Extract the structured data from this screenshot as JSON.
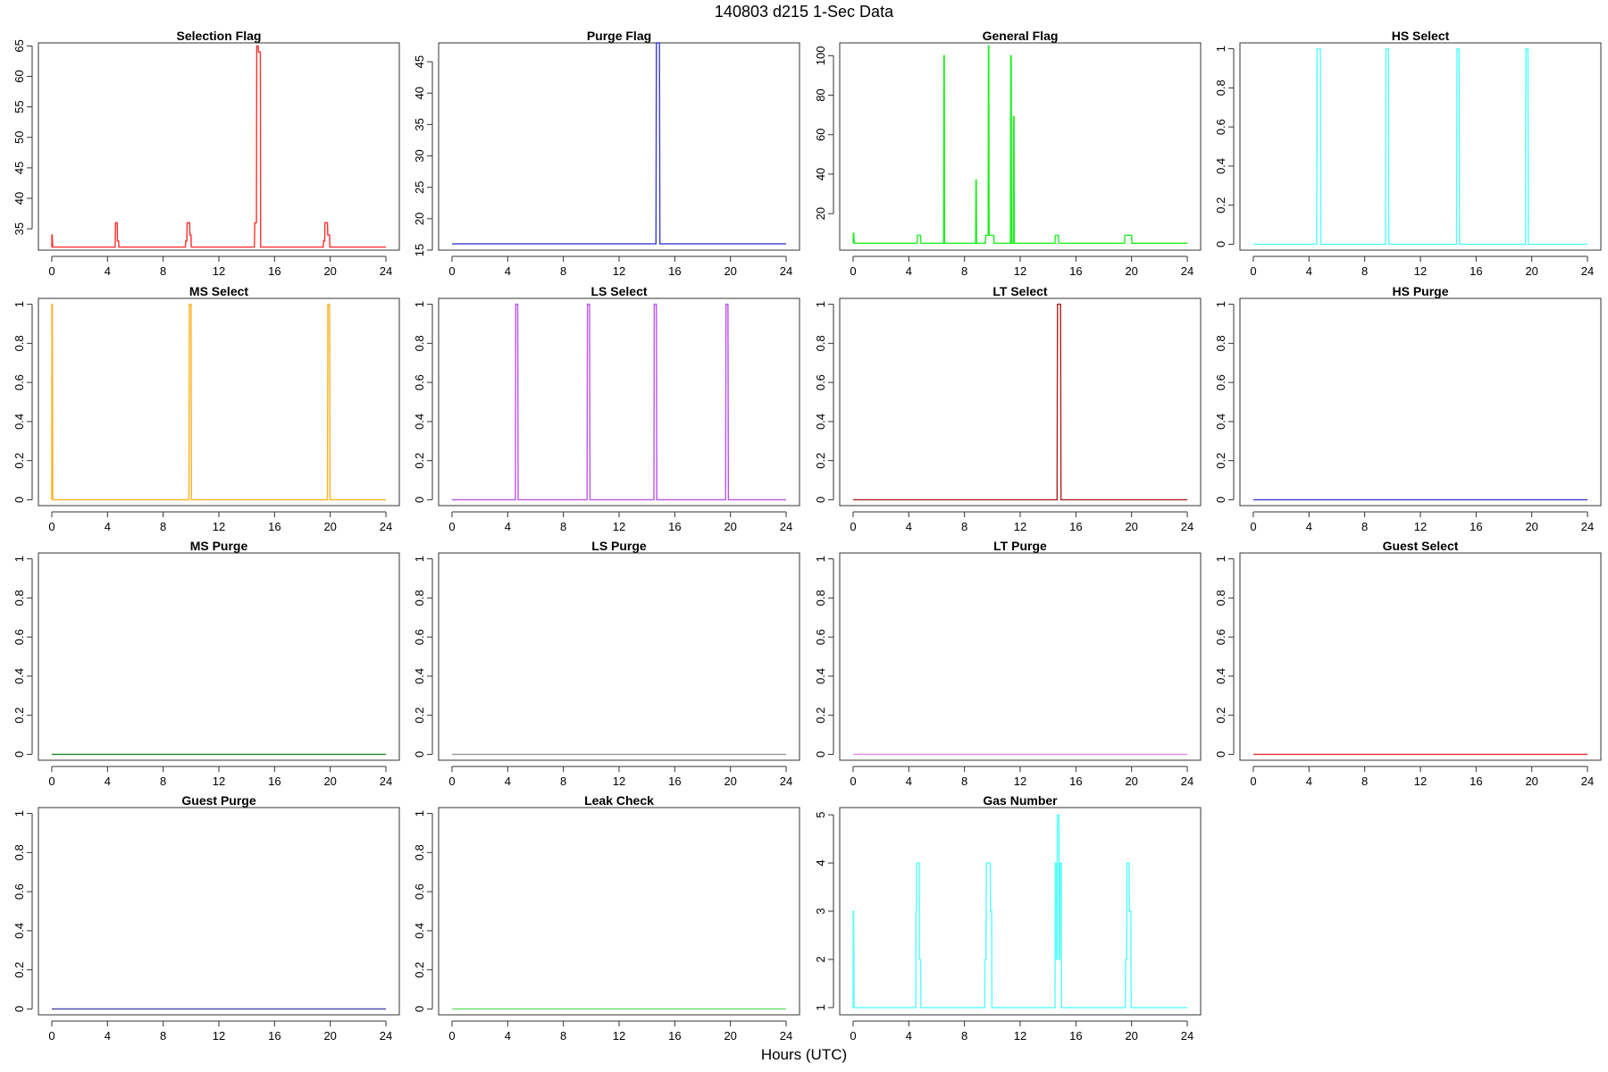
{
  "figure": {
    "title": "140803   d215   1-Sec Data",
    "xlabel": "Hours (UTC)"
  },
  "chart_data": [
    {
      "type": "line",
      "title": "Selection Flag",
      "color": "#ff3030",
      "xlim": [
        0,
        24
      ],
      "xticks": [
        0,
        4,
        8,
        12,
        16,
        20,
        24
      ],
      "ylim": [
        31.5,
        65.5
      ],
      "yticks": [
        35,
        40,
        45,
        50,
        55,
        60,
        65
      ],
      "x": [
        0,
        0.01,
        0.03,
        0.07,
        0.09,
        4.55,
        4.58,
        4.7,
        4.72,
        4.8,
        4.82,
        9.6,
        9.62,
        9.7,
        9.72,
        9.9,
        9.92,
        10.0,
        10.02,
        14.55,
        14.58,
        14.7,
        14.72,
        14.82,
        14.85,
        14.98,
        15.0,
        19.5,
        19.52,
        19.6,
        19.62,
        19.8,
        19.82,
        19.95,
        19.97,
        24
      ],
      "y": [
        32,
        34,
        34,
        32,
        32,
        32,
        36,
        36,
        33,
        33,
        32,
        32,
        33,
        33,
        36,
        36,
        34,
        34,
        32,
        32,
        36,
        36,
        65,
        65,
        64,
        64,
        32,
        32,
        33,
        33,
        36,
        36,
        34,
        34,
        32,
        32
      ]
    },
    {
      "type": "line",
      "title": "Purge Flag",
      "color": "#3b3bd6",
      "xlim": [
        0,
        24
      ],
      "xticks": [
        0,
        4,
        8,
        12,
        16,
        20,
        24
      ],
      "ylim": [
        15,
        48
      ],
      "yticks": [
        15,
        20,
        25,
        30,
        35,
        40,
        45
      ],
      "x": [
        0,
        14.65,
        14.68,
        14.9,
        14.93,
        24
      ],
      "y": [
        16,
        16,
        48,
        48,
        16,
        16
      ]
    },
    {
      "type": "line",
      "title": "General Flag",
      "color": "#22ee22",
      "xlim": [
        0,
        24
      ],
      "xticks": [
        0,
        4,
        8,
        12,
        16,
        20,
        24
      ],
      "ylim": [
        1.5,
        106.5
      ],
      "yticks": [
        20,
        40,
        60,
        80,
        100
      ],
      "x": [
        0,
        0.02,
        0.05,
        0.08,
        4.6,
        4.62,
        4.85,
        4.87,
        6.5,
        6.52,
        6.55,
        6.57,
        8.8,
        8.82,
        8.85,
        8.87,
        9.5,
        9.52,
        9.7,
        9.72,
        9.75,
        9.77,
        10.1,
        10.12,
        11.3,
        11.32,
        11.36,
        11.38,
        11.5,
        11.52,
        11.56,
        11.58,
        14.5,
        14.52,
        14.75,
        14.77,
        19.5,
        19.52,
        20.0,
        20.02,
        24
      ],
      "y": [
        5,
        10,
        10,
        5,
        5,
        9,
        9,
        5,
        5,
        100,
        100,
        5,
        5,
        37,
        37,
        5,
        5,
        9,
        9,
        105,
        105,
        9,
        9,
        5,
        5,
        100,
        100,
        5,
        5,
        69,
        69,
        5,
        5,
        9,
        9,
        5,
        5,
        9,
        9,
        5,
        5
      ]
    },
    {
      "type": "line",
      "title": "HS Select",
      "color": "#55ffff",
      "xlim": [
        0,
        24
      ],
      "xticks": [
        0,
        4,
        8,
        12,
        16,
        20,
        24
      ],
      "ylim": [
        -0.03,
        1.03
      ],
      "yticks": [
        0,
        0.2,
        0.4,
        0.6,
        0.8,
        1
      ],
      "x": [
        0,
        4.55,
        4.58,
        4.82,
        4.85,
        9.5,
        9.53,
        9.7,
        9.73,
        14.6,
        14.63,
        14.78,
        14.81,
        19.55,
        19.58,
        19.72,
        19.75,
        24
      ],
      "y": [
        0,
        0,
        1,
        1,
        0,
        0,
        1,
        1,
        0,
        0,
        1,
        1,
        0,
        0,
        1,
        1,
        0,
        0
      ]
    },
    {
      "type": "line",
      "title": "MS Select",
      "color": "#ffb020",
      "xlim": [
        0,
        24
      ],
      "xticks": [
        0,
        4,
        8,
        12,
        16,
        20,
        24
      ],
      "ylim": [
        -0.03,
        1.03
      ],
      "yticks": [
        0,
        0.2,
        0.4,
        0.6,
        0.8,
        1
      ],
      "x": [
        0,
        0.01,
        0.04,
        0.07,
        9.85,
        9.88,
        10.0,
        10.03,
        19.8,
        19.83,
        19.95,
        19.98,
        24
      ],
      "y": [
        0,
        1,
        1,
        0,
        0,
        1,
        1,
        0,
        0,
        1,
        1,
        0,
        0
      ]
    },
    {
      "type": "line",
      "title": "LS Select",
      "color": "#bb55ee",
      "xlim": [
        0,
        24
      ],
      "xticks": [
        0,
        4,
        8,
        12,
        16,
        20,
        24
      ],
      "ylim": [
        -0.03,
        1.03
      ],
      "yticks": [
        0,
        0.2,
        0.4,
        0.6,
        0.8,
        1
      ],
      "x": [
        0,
        4.55,
        4.58,
        4.72,
        4.75,
        9.7,
        9.73,
        9.88,
        9.91,
        14.5,
        14.53,
        14.68,
        14.71,
        19.65,
        19.68,
        19.82,
        19.85,
        24
      ],
      "y": [
        0,
        0,
        1,
        1,
        0,
        0,
        1,
        1,
        0,
        0,
        1,
        1,
        0,
        0,
        1,
        1,
        0,
        0
      ]
    },
    {
      "type": "line",
      "title": "LT Select",
      "color": "#b02020",
      "xlim": [
        0,
        24
      ],
      "xticks": [
        0,
        4,
        8,
        12,
        16,
        20,
        24
      ],
      "ylim": [
        -0.03,
        1.03
      ],
      "yticks": [
        0,
        0.2,
        0.4,
        0.6,
        0.8,
        1
      ],
      "x": [
        0,
        14.65,
        14.68,
        14.9,
        14.93,
        24
      ],
      "y": [
        0,
        0,
        1,
        1,
        0,
        0
      ]
    },
    {
      "type": "line",
      "title": "HS Purge",
      "color": "#3b3bd6",
      "xlim": [
        0,
        24
      ],
      "xticks": [
        0,
        4,
        8,
        12,
        16,
        20,
        24
      ],
      "ylim": [
        -0.03,
        1.03
      ],
      "yticks": [
        0,
        0.2,
        0.4,
        0.6,
        0.8,
        1
      ],
      "x": [
        0,
        24
      ],
      "y": [
        0,
        0
      ]
    },
    {
      "type": "line",
      "title": "MS Purge",
      "color": "#228822",
      "xlim": [
        0,
        24
      ],
      "xticks": [
        0,
        4,
        8,
        12,
        16,
        20,
        24
      ],
      "ylim": [
        -0.03,
        1.03
      ],
      "yticks": [
        0,
        0.2,
        0.4,
        0.6,
        0.8,
        1
      ],
      "x": [
        0,
        24
      ],
      "y": [
        0,
        0
      ]
    },
    {
      "type": "line",
      "title": "LS Purge",
      "color": "#999999",
      "xlim": [
        0,
        24
      ],
      "xticks": [
        0,
        4,
        8,
        12,
        16,
        20,
        24
      ],
      "ylim": [
        -0.03,
        1.03
      ],
      "yticks": [
        0,
        0.2,
        0.4,
        0.6,
        0.8,
        1
      ],
      "x": [
        0,
        24
      ],
      "y": [
        0,
        0
      ]
    },
    {
      "type": "line",
      "title": "LT Purge",
      "color": "#ee88ee",
      "xlim": [
        0,
        24
      ],
      "xticks": [
        0,
        4,
        8,
        12,
        16,
        20,
        24
      ],
      "ylim": [
        -0.03,
        1.03
      ],
      "yticks": [
        0,
        0.2,
        0.4,
        0.6,
        0.8,
        1
      ],
      "x": [
        0,
        24
      ],
      "y": [
        0,
        0
      ]
    },
    {
      "type": "line",
      "title": "Guest Select",
      "color": "#ee3030",
      "xlim": [
        0,
        24
      ],
      "xticks": [
        0,
        4,
        8,
        12,
        16,
        20,
        24
      ],
      "ylim": [
        -0.03,
        1.03
      ],
      "yticks": [
        0,
        0.2,
        0.4,
        0.6,
        0.8,
        1
      ],
      "x": [
        0,
        24
      ],
      "y": [
        0,
        0
      ]
    },
    {
      "type": "line",
      "title": "Guest Purge",
      "color": "#4444aa",
      "xlim": [
        0,
        24
      ],
      "xticks": [
        0,
        4,
        8,
        12,
        16,
        20,
        24
      ],
      "ylim": [
        -0.03,
        1.03
      ],
      "yticks": [
        0,
        0.2,
        0.4,
        0.6,
        0.8,
        1
      ],
      "x": [
        0,
        24
      ],
      "y": [
        0,
        0
      ]
    },
    {
      "type": "line",
      "title": "Leak Check",
      "color": "#66dd66",
      "xlim": [
        0,
        24
      ],
      "xticks": [
        0,
        4,
        8,
        12,
        16,
        20,
        24
      ],
      "ylim": [
        -0.03,
        1.03
      ],
      "yticks": [
        0,
        0.2,
        0.4,
        0.6,
        0.8,
        1
      ],
      "x": [
        0,
        24
      ],
      "y": [
        0,
        0
      ]
    },
    {
      "type": "line",
      "title": "Gas Number",
      "color": "#55ffff",
      "xlim": [
        0,
        24
      ],
      "xticks": [
        0,
        4,
        8,
        12,
        16,
        20,
        24
      ],
      "ylim": [
        0.85,
        5.15
      ],
      "yticks": [
        1,
        2,
        3,
        4,
        5
      ],
      "x": [
        0,
        0.01,
        0.04,
        0.07,
        4.5,
        4.52,
        4.55,
        4.57,
        4.75,
        4.77,
        4.85,
        4.87,
        9.45,
        9.47,
        9.55,
        9.57,
        9.85,
        9.87,
        9.95,
        9.97,
        10.05,
        10.07,
        14.5,
        14.52,
        14.58,
        14.6,
        14.65,
        14.67,
        14.78,
        14.8,
        14.85,
        14.87,
        14.95,
        14.97,
        19.55,
        19.57,
        19.65,
        19.67,
        19.82,
        19.84,
        19.95,
        19.97,
        24
      ],
      "y": [
        1,
        3,
        3,
        1,
        1,
        3,
        3,
        4,
        4,
        2,
        2,
        1,
        1,
        2,
        2,
        4,
        4,
        3,
        3,
        1,
        1,
        1,
        1,
        4,
        4,
        2,
        2,
        5,
        5,
        2,
        2,
        4,
        4,
        1,
        1,
        2,
        2,
        4,
        4,
        3,
        3,
        1,
        1
      ]
    }
  ]
}
